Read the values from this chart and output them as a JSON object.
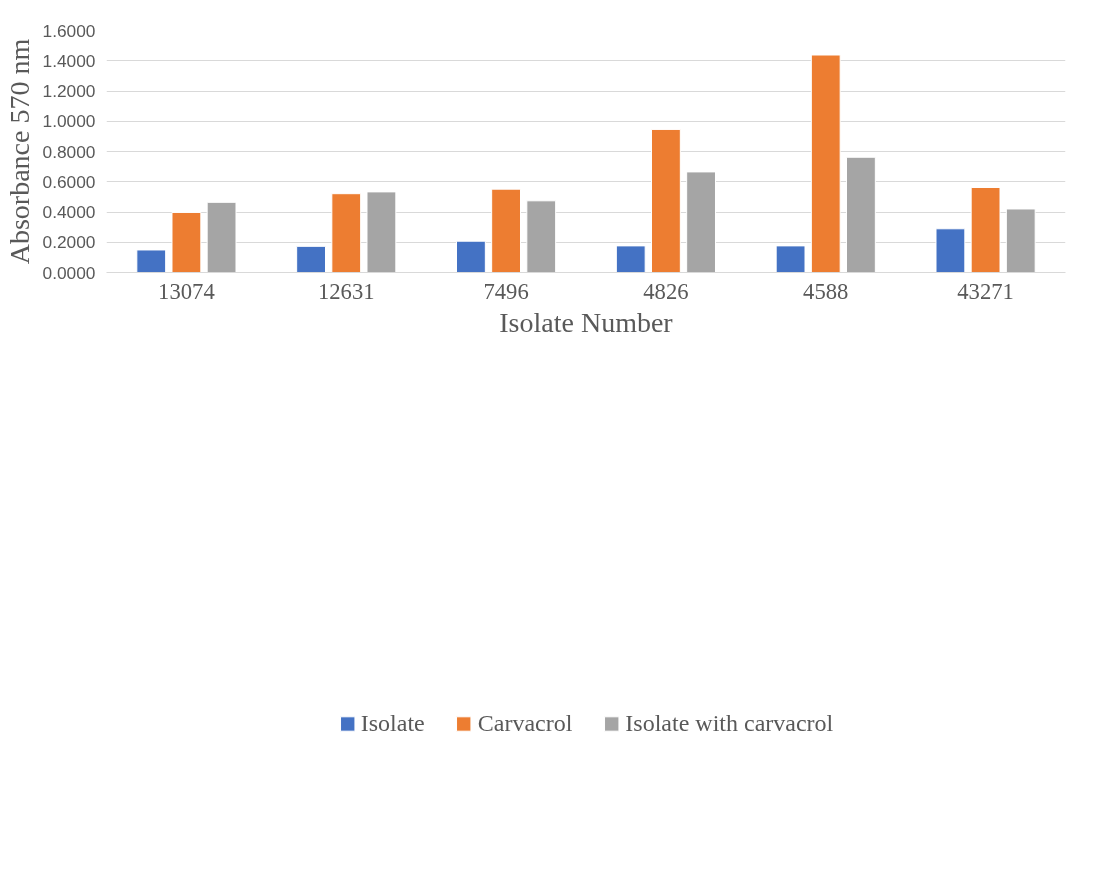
{
  "chart_data": {
    "type": "bar",
    "xlabel": "Isolate Number",
    "ylabel": "Absorbance 570 nm",
    "categories": [
      "13074",
      "12631",
      "7496",
      "4826",
      "4588",
      "43271"
    ],
    "series": [
      {
        "name": "Isolate",
        "color": "#4472c4",
        "values": [
          0.149,
          0.173,
          0.207,
          0.176,
          0.176,
          0.289
        ]
      },
      {
        "name": "Carvacrol",
        "color": "#ed7d31",
        "values": [
          0.397,
          0.521,
          0.551,
          0.946,
          1.438,
          0.562
        ]
      },
      {
        "name": "Isolate with carvacrol",
        "color": "#a5a5a5",
        "values": [
          0.464,
          0.533,
          0.474,
          0.665,
          0.762,
          0.42
        ]
      }
    ],
    "ylim": [
      0,
      1.6
    ],
    "yticks": [
      {
        "value": 0,
        "label": "0.0000"
      },
      {
        "value": 0.2,
        "label": "0.2000"
      },
      {
        "value": 0.4,
        "label": "0.4000"
      },
      {
        "value": 0.6,
        "label": "0.6000"
      },
      {
        "value": 0.8,
        "label": "0.8000"
      },
      {
        "value": 1.0,
        "label": "1.0000"
      },
      {
        "value": 1.2,
        "label": "1.2000"
      },
      {
        "value": 1.4,
        "label": "1.4000"
      },
      {
        "value": 1.6,
        "label": "1.6000"
      }
    ],
    "grid": "y",
    "legend": "bottom"
  }
}
